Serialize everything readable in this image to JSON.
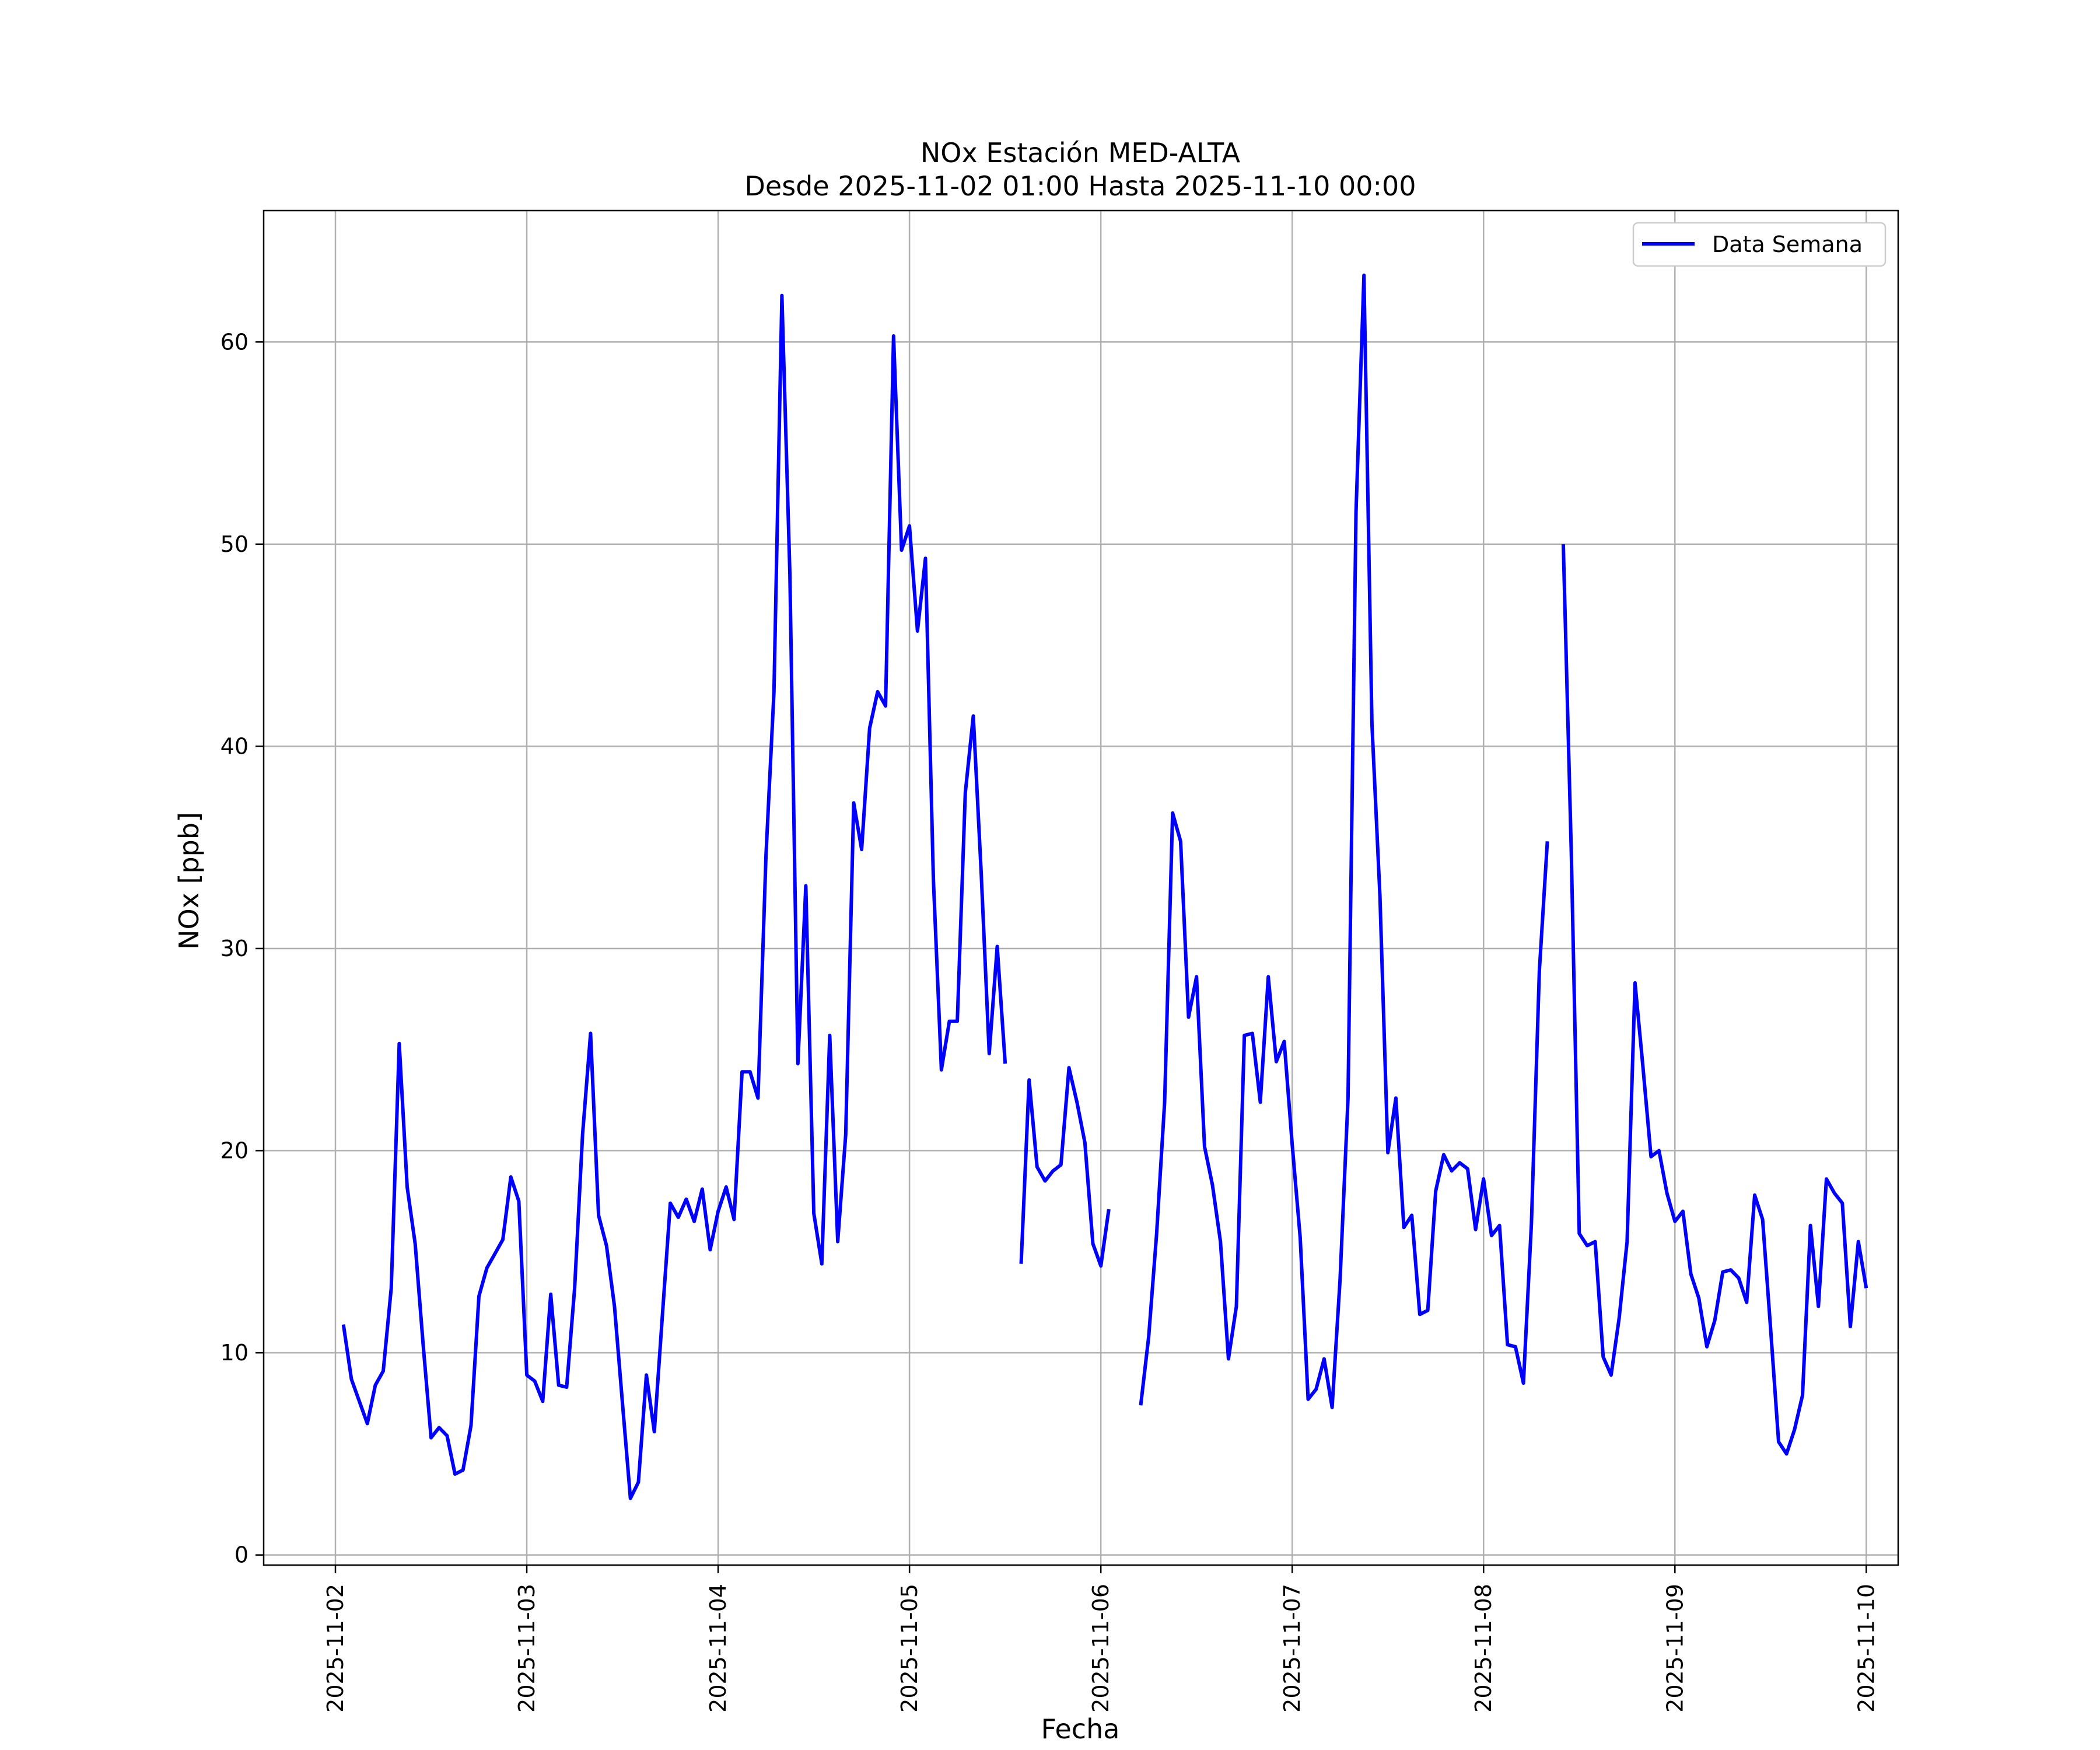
{
  "chart_data": {
    "type": "line",
    "title": "NOx Estación MED-ALTA",
    "subtitle": "Desde 2025-11-02 01:00 Hasta 2025-11-10 00:00",
    "xlabel": "Fecha",
    "ylabel": "NOx [ppb]",
    "xlim": [
      "2025-11-01 15:00",
      "2025-11-10 04:00"
    ],
    "ylim": [
      -0.5,
      66.5
    ],
    "x_ticks": [
      "2025-11-02",
      "2025-11-03",
      "2025-11-04",
      "2025-11-05",
      "2025-11-06",
      "2025-11-07",
      "2025-11-08",
      "2025-11-09",
      "2025-11-10"
    ],
    "y_ticks": [
      0,
      10,
      20,
      30,
      40,
      50,
      60
    ],
    "grid": true,
    "legend": {
      "position": "top-right",
      "entries": [
        "Data Semana"
      ]
    },
    "series": [
      {
        "name": "Data Semana",
        "color": "#0000ff",
        "start": "2025-11-02 01:00",
        "step_hours": 1,
        "values": [
          11.4,
          8.7,
          7.6,
          6.5,
          8.4,
          9.1,
          13.2,
          25.3,
          18.2,
          15.4,
          10.4,
          5.8,
          6.3,
          5.9,
          4.0,
          4.2,
          6.4,
          12.8,
          14.2,
          14.9,
          15.6,
          18.7,
          17.5,
          8.9,
          8.6,
          7.6,
          12.9,
          8.4,
          8.3,
          13.2,
          20.8,
          25.8,
          16.8,
          15.3,
          12.3,
          7.5,
          2.8,
          3.6,
          8.9,
          6.1,
          11.8,
          17.4,
          16.7,
          17.6,
          16.5,
          18.1,
          15.1,
          17.0,
          18.2,
          16.6,
          23.9,
          23.9,
          22.6,
          34.6,
          42.7,
          62.3,
          48.5,
          24.3,
          33.1,
          16.9,
          14.4,
          25.7,
          15.5,
          20.8,
          37.2,
          34.9,
          40.9,
          42.7,
          42.0,
          60.3,
          49.7,
          50.9,
          45.7,
          49.3,
          33.4,
          24.0,
          26.4,
          26.4,
          37.7,
          41.5,
          33.7,
          24.8,
          30.1,
          24.3,
          null,
          14.4,
          23.5,
          19.2,
          18.5,
          19.0,
          19.3,
          24.1,
          22.4,
          20.4,
          15.4,
          14.3,
          17.1,
          null,
          null,
          null,
          7.4,
          10.8,
          15.9,
          22.4,
          36.7,
          35.3,
          26.6,
          28.6,
          20.2,
          18.3,
          15.5,
          9.7,
          12.3,
          25.7,
          25.8,
          22.4,
          28.6,
          24.4,
          25.4,
          20.3,
          15.7,
          7.7,
          8.2,
          9.7,
          7.3,
          13.6,
          22.6,
          51.6,
          63.3,
          41.1,
          32.6,
          19.9,
          22.6,
          16.2,
          16.8,
          11.9,
          12.1,
          18.0,
          19.8,
          19.0,
          19.4,
          19.1,
          16.1,
          18.6,
          15.8,
          16.3,
          10.4,
          10.3,
          8.5,
          16.4,
          28.9,
          35.3,
          null,
          50.0,
          34.8,
          15.9,
          15.3,
          15.5,
          9.8,
          8.9,
          11.7,
          15.5,
          28.3,
          24.1,
          19.7,
          20.0,
          17.9,
          16.5,
          17.0,
          13.9,
          12.7,
          10.3,
          11.6,
          14.0,
          14.1,
          13.7,
          12.5,
          17.8,
          16.6,
          11.2,
          5.6,
          5.0,
          6.2,
          7.9,
          16.3,
          12.3,
          18.6,
          17.9,
          17.4,
          11.3,
          15.5,
          13.2
        ]
      }
    ]
  }
}
